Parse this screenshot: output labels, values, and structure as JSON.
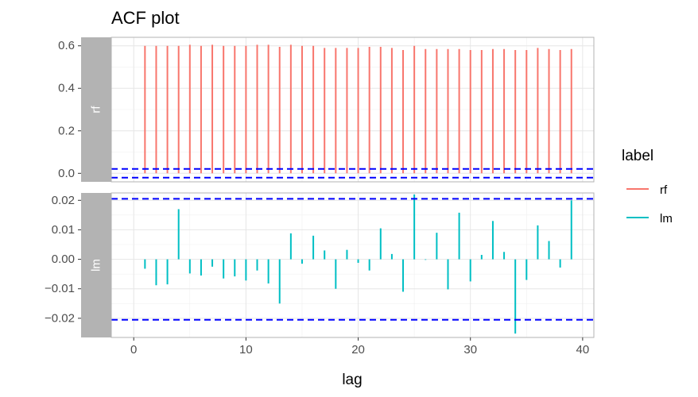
{
  "chart_data": {
    "type": "bar",
    "title": "ACF plot",
    "xlabel": "lag",
    "ylabel": "",
    "x_ticks": [
      "0",
      "10",
      "20",
      "30",
      "40"
    ],
    "xlim": [
      -2,
      41
    ],
    "facets": [
      {
        "name": "rf",
        "strip_label": "rf",
        "ylim": [
          -0.04,
          0.64
        ],
        "y_ticks": [
          "0.0",
          "0.2",
          "0.4",
          "0.6"
        ],
        "y_tick_values": [
          0.0,
          0.2,
          0.4,
          0.6
        ],
        "confidence_band": [
          -0.0205,
          0.0205
        ],
        "lags": [
          1,
          2,
          3,
          4,
          5,
          6,
          7,
          8,
          9,
          10,
          11,
          12,
          13,
          14,
          15,
          16,
          17,
          18,
          19,
          20,
          21,
          22,
          23,
          24,
          25,
          26,
          27,
          28,
          29,
          30,
          31,
          32,
          33,
          34,
          35,
          36,
          37,
          38,
          39
        ],
        "values": [
          0.6,
          0.6,
          0.6,
          0.6,
          0.605,
          0.6,
          0.605,
          0.6,
          0.6,
          0.6,
          0.605,
          0.605,
          0.595,
          0.605,
          0.6,
          0.6,
          0.59,
          0.59,
          0.59,
          0.59,
          0.595,
          0.595,
          0.59,
          0.58,
          0.6,
          0.585,
          0.585,
          0.585,
          0.585,
          0.58,
          0.58,
          0.585,
          0.585,
          0.58,
          0.58,
          0.59,
          0.585,
          0.58,
          0.585
        ]
      },
      {
        "name": "lm",
        "strip_label": "lm",
        "ylim": [
          -0.0265,
          0.0225
        ],
        "y_ticks": [
          "0.02",
          "0.01",
          "0.00",
          "−0.01",
          "−0.02"
        ],
        "y_tick_values": [
          0.02,
          0.01,
          0.0,
          -0.01,
          -0.02
        ],
        "confidence_band": [
          -0.0205,
          0.0205
        ],
        "lags": [
          1,
          2,
          3,
          4,
          5,
          6,
          7,
          8,
          9,
          10,
          11,
          12,
          13,
          14,
          15,
          16,
          17,
          18,
          19,
          20,
          21,
          22,
          23,
          24,
          25,
          26,
          27,
          28,
          29,
          30,
          31,
          32,
          33,
          34,
          35,
          36,
          37,
          38,
          39
        ],
        "values": [
          -0.0032,
          -0.0088,
          -0.0085,
          0.017,
          -0.0048,
          -0.0055,
          -0.0025,
          -0.0065,
          -0.0058,
          -0.0072,
          -0.0038,
          -0.0082,
          -0.015,
          0.0088,
          -0.0015,
          0.008,
          0.003,
          -0.01,
          0.0032,
          -0.0012,
          -0.0038,
          0.0105,
          0.0018,
          -0.011,
          0.022,
          -0.0002,
          0.009,
          -0.0102,
          0.0158,
          -0.0075,
          0.0015,
          0.013,
          0.0025,
          -0.0252,
          -0.007,
          0.0115,
          0.0062,
          -0.0028,
          0.02
        ]
      }
    ],
    "legend": {
      "title": "label",
      "position": "right",
      "entries": [
        {
          "label": "rf",
          "color": "#F8766D"
        },
        {
          "label": "lm",
          "color": "#00BFC4"
        }
      ]
    },
    "colors": {
      "rf": "#F8766D",
      "lm": "#00BFC4",
      "band": "#0000FF",
      "strip": "#B3B3B3"
    },
    "grid": true
  }
}
